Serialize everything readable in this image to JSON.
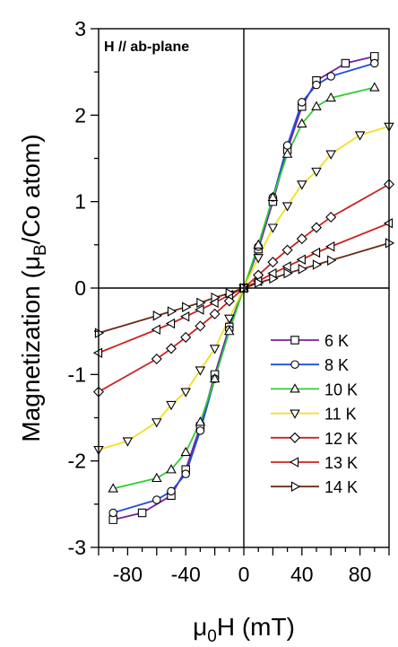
{
  "chart_data": {
    "type": "line",
    "annotation": "H // ab-plane",
    "xlabel": {
      "main": "μ",
      "sub": "0",
      "rest": "H (mT)"
    },
    "ylabel": {
      "main": "Magnetization (μ",
      "sub": "B",
      "rest": "/Co atom)"
    },
    "xlim": [
      -100,
      100
    ],
    "ylim": [
      -3,
      3
    ],
    "xticks": [
      -80,
      -40,
      0,
      40,
      80
    ],
    "xtick_labels": [
      "-80",
      "-40",
      "0",
      "40",
      "80"
    ],
    "yticks": [
      -3,
      -2,
      -1,
      0,
      1,
      2,
      3
    ],
    "ytick_labels": [
      "-3",
      "-2",
      "-1",
      "0",
      "1",
      "2",
      "3"
    ],
    "grid": false,
    "legend_position": "bottom-right",
    "series": [
      {
        "name": "6 K",
        "color": "#7b1fa2",
        "marker": "square",
        "x": [
          -90,
          -70,
          -50,
          -40,
          -30,
          -20,
          -10,
          0,
          10,
          20,
          30,
          40,
          50,
          70,
          90
        ],
        "y": [
          -2.68,
          -2.6,
          -2.4,
          -2.1,
          -1.6,
          -1.0,
          -0.45,
          0,
          0.45,
          1.0,
          1.6,
          2.1,
          2.4,
          2.6,
          2.68
        ]
      },
      {
        "name": "8 K",
        "color": "#1f4fd8",
        "marker": "circle",
        "x": [
          -90,
          -60,
          -50,
          -40,
          -30,
          -20,
          -10,
          0,
          10,
          20,
          30,
          40,
          50,
          60,
          90
        ],
        "y": [
          -2.6,
          -2.45,
          -2.35,
          -2.15,
          -1.65,
          -1.05,
          -0.48,
          0,
          0.48,
          1.05,
          1.65,
          2.15,
          2.35,
          2.45,
          2.6
        ]
      },
      {
        "name": "10 K",
        "color": "#33cc33",
        "marker": "triangle-up",
        "x": [
          -90,
          -60,
          -50,
          -40,
          -30,
          -20,
          -10,
          0,
          10,
          20,
          30,
          40,
          50,
          60,
          90
        ],
        "y": [
          -2.32,
          -2.2,
          -2.1,
          -1.9,
          -1.55,
          -1.05,
          -0.5,
          0,
          0.5,
          1.05,
          1.55,
          1.9,
          2.1,
          2.2,
          2.32
        ]
      },
      {
        "name": "11 K",
        "color": "#f0e020",
        "marker": "triangle-down",
        "x": [
          -100,
          -80,
          -60,
          -50,
          -40,
          -30,
          -20,
          -10,
          0,
          10,
          20,
          30,
          40,
          50,
          60,
          80,
          100
        ],
        "y": [
          -1.87,
          -1.77,
          -1.55,
          -1.35,
          -1.2,
          -0.95,
          -0.7,
          -0.35,
          0,
          0.35,
          0.7,
          0.95,
          1.2,
          1.35,
          1.55,
          1.77,
          1.87
        ]
      },
      {
        "name": "12 K",
        "color": "#cc2222",
        "marker": "diamond",
        "x": [
          -100,
          -60,
          -50,
          -40,
          -30,
          -20,
          -10,
          0,
          10,
          20,
          30,
          40,
          50,
          60,
          100
        ],
        "y": [
          -1.2,
          -0.82,
          -0.7,
          -0.57,
          -0.44,
          -0.3,
          -0.15,
          0,
          0.15,
          0.3,
          0.44,
          0.57,
          0.7,
          0.82,
          1.2
        ]
      },
      {
        "name": "13 K",
        "color": "#cc2222",
        "marker": "triangle-left",
        "x": [
          -100,
          -60,
          -50,
          -40,
          -30,
          -20,
          -10,
          0,
          10,
          20,
          30,
          40,
          50,
          60,
          100
        ],
        "y": [
          -0.75,
          -0.48,
          -0.41,
          -0.33,
          -0.25,
          -0.17,
          -0.08,
          0,
          0.08,
          0.17,
          0.25,
          0.33,
          0.41,
          0.48,
          0.75
        ]
      },
      {
        "name": "14 K",
        "color": "#6b2a1a",
        "marker": "triangle-right",
        "x": [
          -100,
          -60,
          -50,
          -40,
          -30,
          -20,
          -10,
          0,
          10,
          20,
          30,
          40,
          50,
          60,
          100
        ],
        "y": [
          -0.52,
          -0.32,
          -0.27,
          -0.22,
          -0.17,
          -0.11,
          -0.06,
          0,
          0.06,
          0.11,
          0.17,
          0.22,
          0.27,
          0.32,
          0.52
        ]
      }
    ]
  }
}
